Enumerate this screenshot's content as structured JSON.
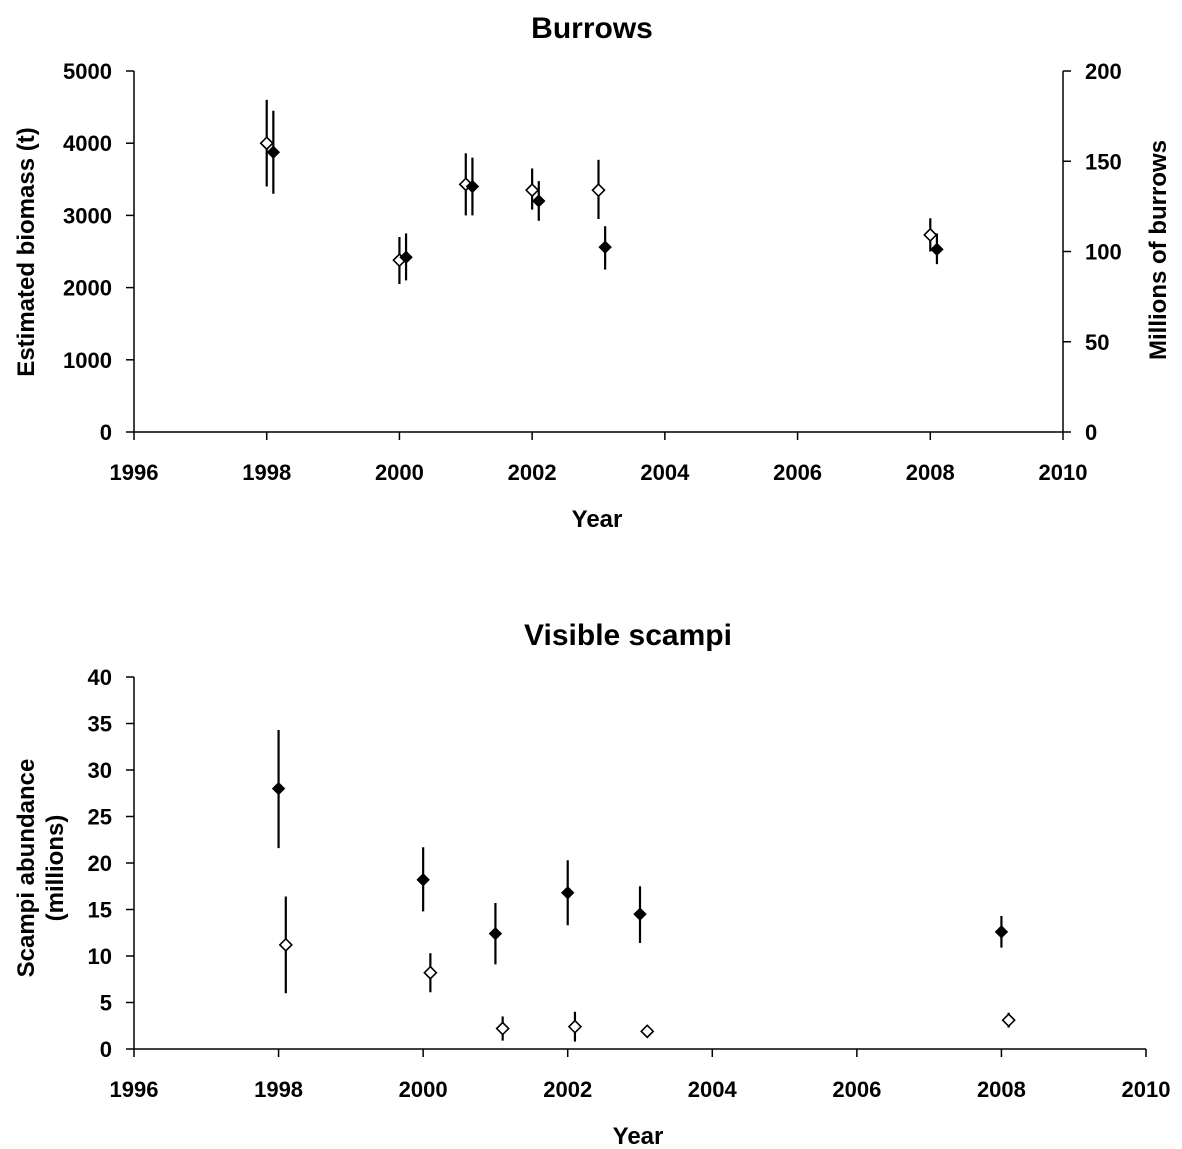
{
  "chart_data": [
    {
      "type": "scatter",
      "title": "Burrows",
      "xlabel": "Year",
      "ylabel": "Estimated biomass (t)",
      "y2label": "Millions of burrows",
      "xlim": [
        1996,
        2010
      ],
      "ylim": [
        0,
        5000
      ],
      "y2lim": [
        0,
        200
      ],
      "x_ticks": [
        "1996",
        "1998",
        "2000",
        "2002",
        "2004",
        "2006",
        "2008",
        "2010"
      ],
      "y_ticks": [
        "0",
        "1000",
        "2000",
        "3000",
        "4000",
        "5000"
      ],
      "y2_ticks": [
        "0",
        "50",
        "100",
        "150",
        "200"
      ],
      "grid": false,
      "series": [
        {
          "marker": "open-diamond",
          "axis": "left",
          "points": [
            {
              "x": 1998.0,
              "y": 4000,
              "low": 3400,
              "high": 4600
            },
            {
              "x": 2000.0,
              "y": 2380,
              "low": 2050,
              "high": 2700
            },
            {
              "x": 2001.0,
              "y": 3430,
              "low": 3000,
              "high": 3860
            },
            {
              "x": 2002.0,
              "y": 3350,
              "low": 3080,
              "high": 3650
            },
            {
              "x": 2003.0,
              "y": 3350,
              "low": 2950,
              "high": 3770
            },
            {
              "x": 2008.0,
              "y": 2730,
              "low": 2500,
              "high": 2960
            }
          ]
        },
        {
          "marker": "filled-diamond",
          "axis": "right",
          "points": [
            {
              "x": 1998.1,
              "y": 155,
              "low": 132,
              "high": 178
            },
            {
              "x": 2000.1,
              "y": 96.8,
              "low": 84,
              "high": 110
            },
            {
              "x": 2001.1,
              "y": 136,
              "low": 120,
              "high": 152
            },
            {
              "x": 2002.1,
              "y": 128,
              "low": 117,
              "high": 139
            },
            {
              "x": 2003.1,
              "y": 102.4,
              "low": 90,
              "high": 114
            },
            {
              "x": 2008.1,
              "y": 101.2,
              "low": 93,
              "high": 110
            }
          ]
        }
      ]
    },
    {
      "type": "scatter",
      "title": "Visible scampi",
      "xlabel": "Year",
      "ylabel": "Scampi abundance (millions)",
      "xlim": [
        1996,
        2010
      ],
      "ylim": [
        0,
        40
      ],
      "x_ticks": [
        "1996",
        "1998",
        "2000",
        "2002",
        "2004",
        "2006",
        "2008",
        "2010"
      ],
      "y_ticks": [
        "0",
        "5",
        "10",
        "15",
        "20",
        "25",
        "30",
        "35",
        "40"
      ],
      "grid": false,
      "series": [
        {
          "marker": "filled-diamond",
          "points": [
            {
              "x": 1998.0,
              "y": 28.0,
              "low": 21.6,
              "high": 34.3
            },
            {
              "x": 2000.0,
              "y": 18.2,
              "low": 14.8,
              "high": 21.7
            },
            {
              "x": 2001.0,
              "y": 12.4,
              "low": 9.1,
              "high": 15.7
            },
            {
              "x": 2002.0,
              "y": 16.8,
              "low": 13.3,
              "high": 20.3
            },
            {
              "x": 2003.0,
              "y": 14.5,
              "low": 11.4,
              "high": 17.5
            },
            {
              "x": 2008.0,
              "y": 12.6,
              "low": 10.9,
              "high": 14.3
            }
          ]
        },
        {
          "marker": "open-diamond",
          "points": [
            {
              "x": 1998.1,
              "y": 11.2,
              "low": 6.0,
              "high": 16.4
            },
            {
              "x": 2000.1,
              "y": 8.2,
              "low": 6.1,
              "high": 10.3
            },
            {
              "x": 2001.1,
              "y": 2.2,
              "low": 0.9,
              "high": 3.5
            },
            {
              "x": 2002.1,
              "y": 2.4,
              "low": 0.8,
              "high": 4.0
            },
            {
              "x": 2003.1,
              "y": 1.9,
              "low": 1.9,
              "high": 1.9
            },
            {
              "x": 2008.1,
              "y": 3.1,
              "low": 2.3,
              "high": 3.9
            }
          ]
        }
      ]
    }
  ]
}
